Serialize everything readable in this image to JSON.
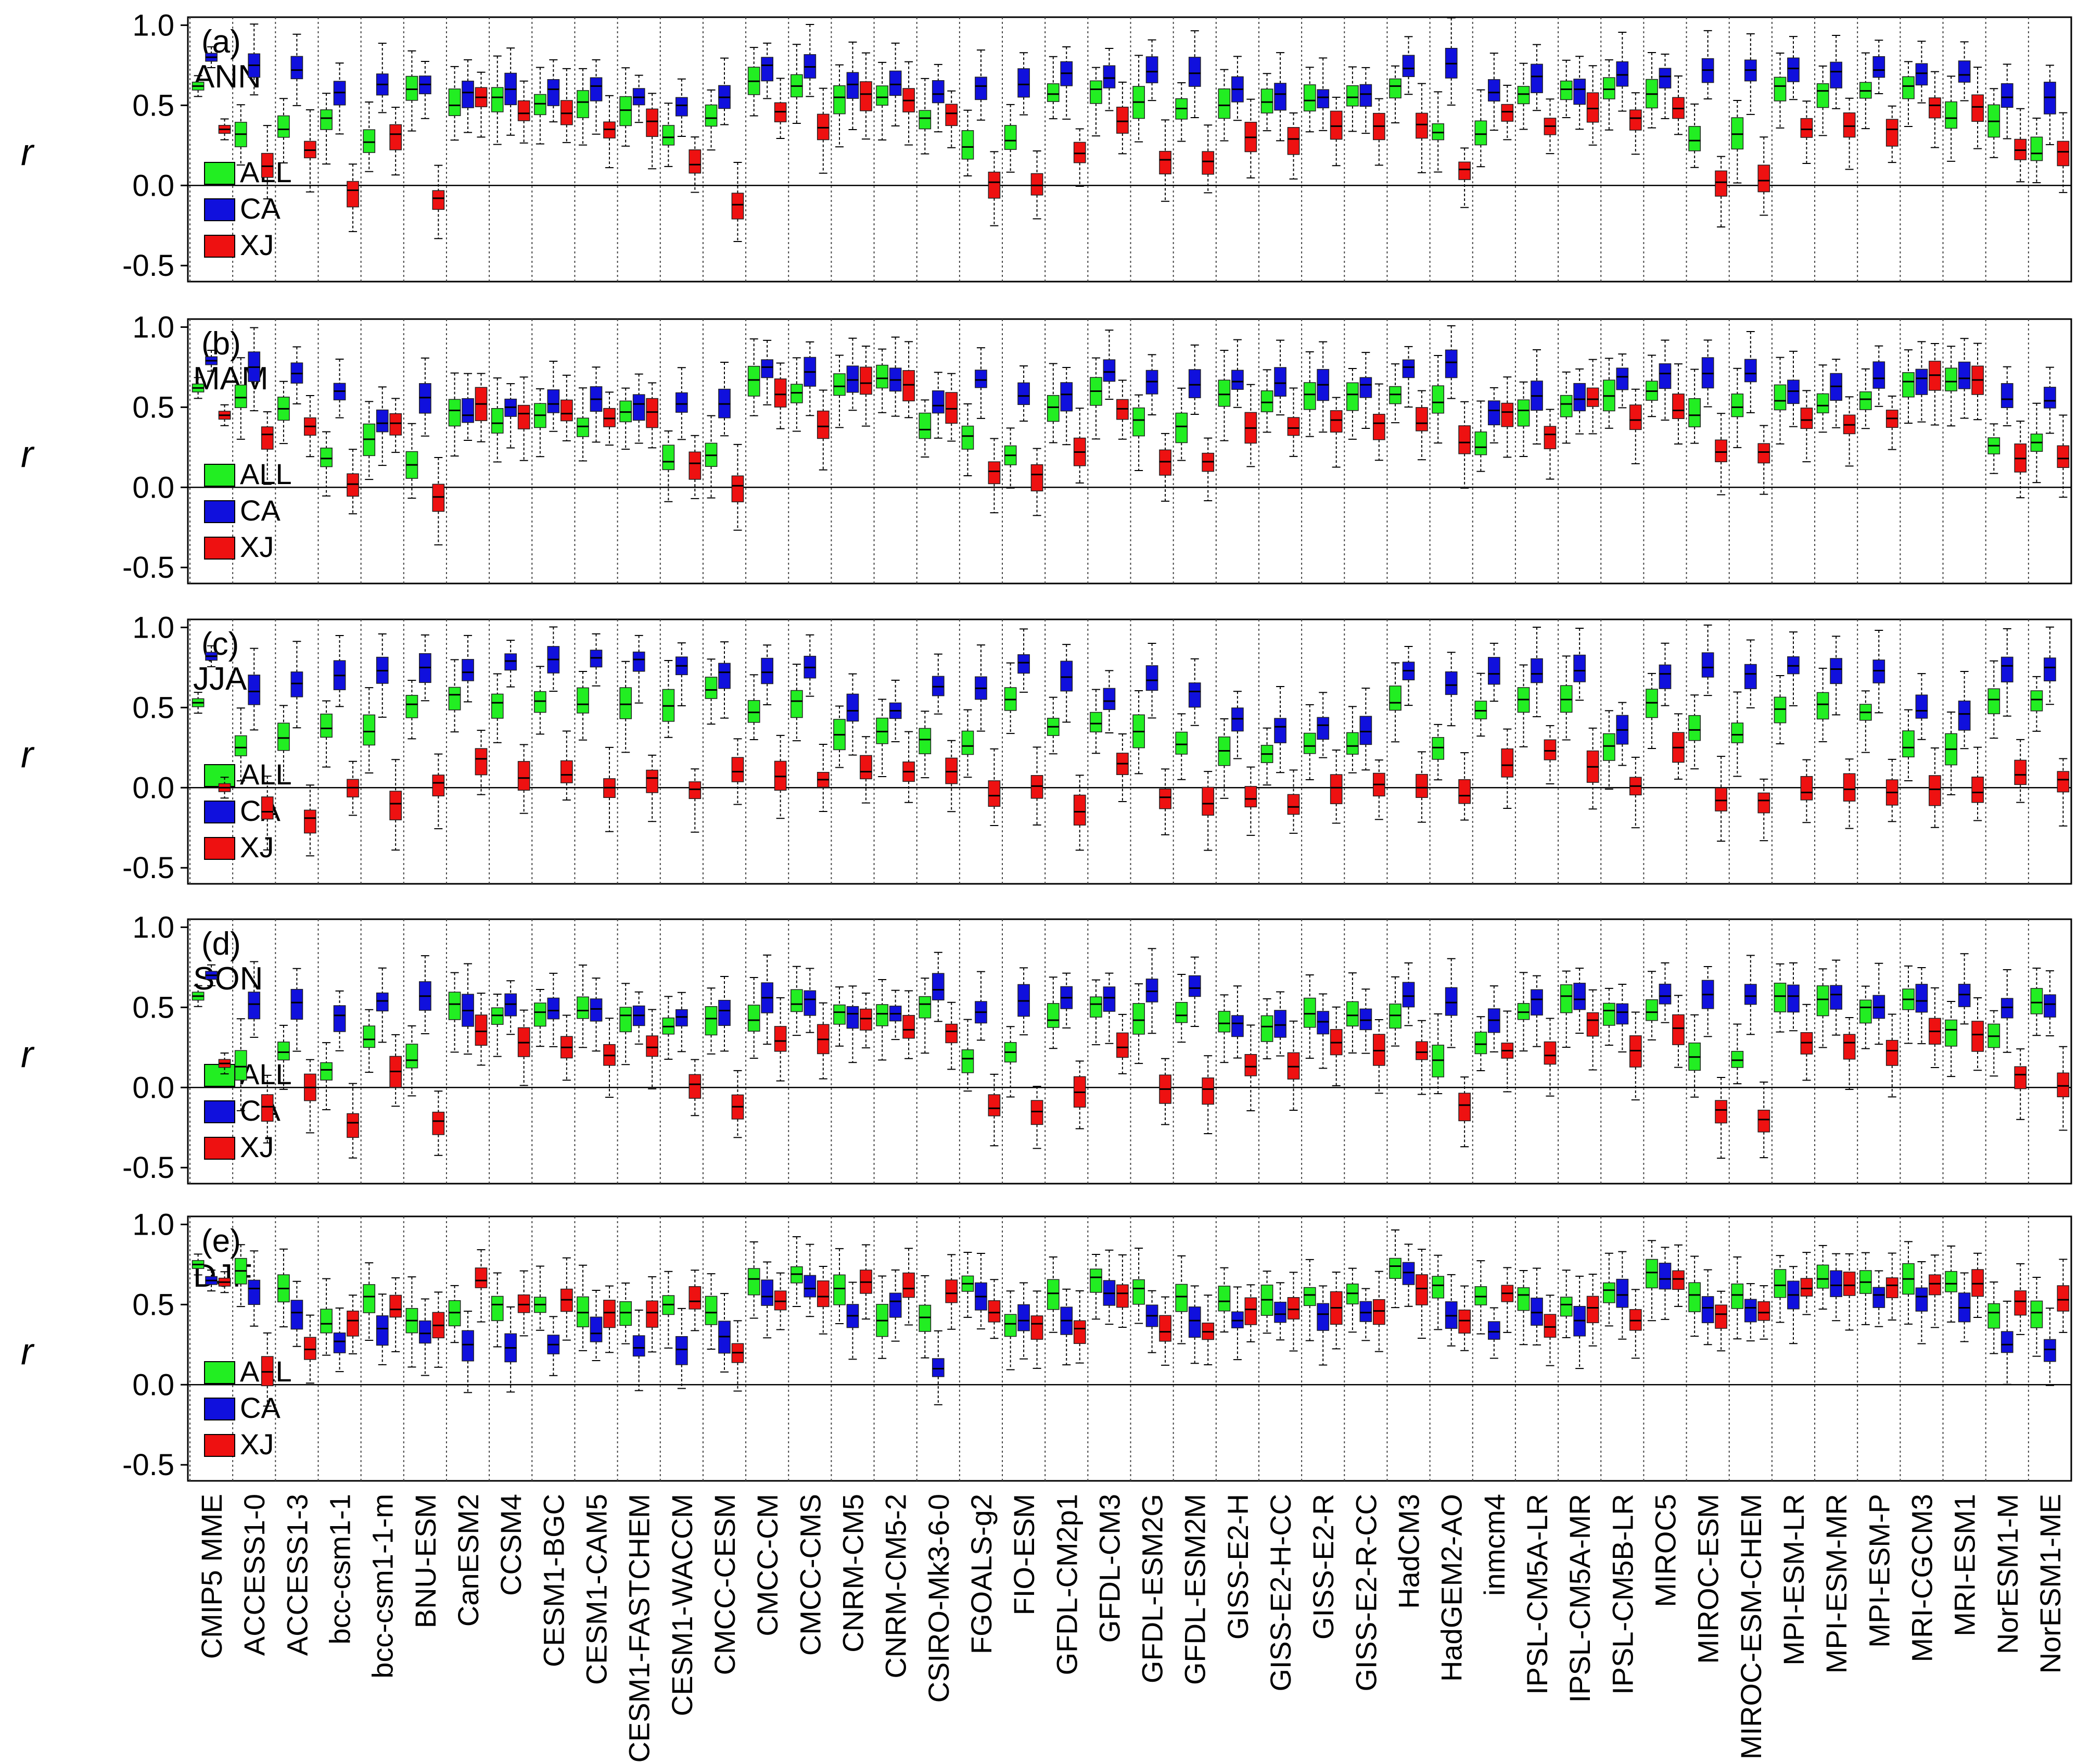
{
  "chart_data": {
    "type": "boxplot",
    "ylabel": "r",
    "ylim": [
      -0.6,
      1.05
    ],
    "yticks": [
      1.0,
      0.5,
      0.0,
      -0.5
    ],
    "ytick_labels": [
      "1.0",
      "0.5",
      "0.0",
      "-0.5"
    ],
    "series_colors": {
      "ALL": "#22ee22",
      "CA": "#1010dd",
      "XJ": "#ee1111"
    },
    "legend": [
      "ALL",
      "CA",
      "XJ"
    ],
    "models": [
      "CMIP5 MME",
      "ACCESS1-0",
      "ACCESS1-3",
      "bcc-csm1-1",
      "bcc-csm1-1-m",
      "BNU-ESM",
      "CanESM2",
      "CCSM4",
      "CESM1-BGC",
      "CESM1-CAM5",
      "CESM1-FASTCHEM",
      "CESM1-WACCM",
      "CMCC-CESM",
      "CMCC-CM",
      "CMCC-CMS",
      "CNRM-CM5",
      "CNRM-CM5-2",
      "CSIRO-Mk3-6-0",
      "FGOALS-g2",
      "FIO-ESM",
      "GFDL-CM2p1",
      "GFDL-CM3",
      "GFDL-ESM2G",
      "GFDL-ESM2M",
      "GISS-E2-H",
      "GISS-E2-H-CC",
      "GISS-E2-R",
      "GISS-E2-R-CC",
      "HadCM3",
      "HadGEM2-AO",
      "inmcm4",
      "IPSL-CM5A-LR",
      "IPSL-CM5A-MR",
      "IPSL-CM5B-LR",
      "MIROC5",
      "MIROC-ESM",
      "MIROC-ESM-CHEM",
      "MPI-ESM-LR",
      "MPI-ESM-MR",
      "MPI-ESM-P",
      "MRI-CGCM3",
      "MRI-ESM1",
      "NorESM1-M",
      "NorESM1-ME"
    ],
    "panels": [
      {
        "label": "(a)",
        "season": "ANN",
        "ALL": [
          0.62,
          0.32,
          0.35,
          0.42,
          0.27,
          0.6,
          0.5,
          0.55,
          0.51,
          0.52,
          0.47,
          0.3,
          0.42,
          0.65,
          0.62,
          0.55,
          0.55,
          0.42,
          0.24,
          0.28,
          0.57,
          0.6,
          0.52,
          0.48,
          0.5,
          0.52,
          0.53,
          0.55,
          0.62,
          0.33,
          0.32,
          0.57,
          0.6,
          0.6,
          0.57,
          0.28,
          0.32,
          0.62,
          0.59,
          0.59,
          0.62,
          0.42,
          0.4,
          0.2
        ],
        "CA": [
          0.8,
          0.75,
          0.72,
          0.58,
          0.63,
          0.63,
          0.58,
          0.6,
          0.6,
          0.62,
          0.55,
          0.5,
          0.55,
          0.75,
          0.74,
          0.63,
          0.63,
          0.57,
          0.62,
          0.63,
          0.7,
          0.67,
          0.71,
          0.7,
          0.6,
          0.57,
          0.55,
          0.57,
          0.73,
          0.76,
          0.58,
          0.68,
          0.6,
          0.69,
          0.68,
          0.72,
          0.72,
          0.73,
          0.71,
          0.72,
          0.7,
          0.69,
          0.55,
          0.55
        ],
        "XJ": [
          0.35,
          0.12,
          0.22,
          -0.03,
          0.32,
          -0.08,
          0.55,
          0.45,
          0.45,
          0.35,
          0.4,
          0.13,
          -0.12,
          0.46,
          0.36,
          0.57,
          0.53,
          0.45,
          0.02,
          0.0,
          0.2,
          0.4,
          0.16,
          0.15,
          0.3,
          0.29,
          0.37,
          0.37,
          0.38,
          0.1,
          0.46,
          0.37,
          0.48,
          0.42,
          0.48,
          0.02,
          0.03,
          0.35,
          0.37,
          0.35,
          0.5,
          0.49,
          0.22,
          0.21
        ]
      },
      {
        "label": "(b)",
        "season": "MAM",
        "ALL": [
          0.62,
          0.56,
          0.49,
          0.18,
          0.3,
          0.14,
          0.48,
          0.4,
          0.45,
          0.38,
          0.47,
          0.16,
          0.2,
          0.67,
          0.59,
          0.63,
          0.68,
          0.36,
          0.32,
          0.2,
          0.5,
          0.6,
          0.42,
          0.38,
          0.58,
          0.53,
          0.58,
          0.58,
          0.58,
          0.53,
          0.25,
          0.48,
          0.52,
          0.57,
          0.6,
          0.45,
          0.5,
          0.54,
          0.51,
          0.55,
          0.66,
          0.66,
          0.26,
          0.28
        ],
        "CA": [
          0.79,
          0.75,
          0.71,
          0.6,
          0.4,
          0.56,
          0.45,
          0.5,
          0.52,
          0.55,
          0.52,
          0.52,
          0.52,
          0.75,
          0.72,
          0.67,
          0.67,
          0.51,
          0.67,
          0.57,
          0.58,
          0.72,
          0.66,
          0.64,
          0.66,
          0.65,
          0.64,
          0.64,
          0.75,
          0.78,
          0.48,
          0.57,
          0.55,
          0.69,
          0.71,
          0.71,
          0.71,
          0.6,
          0.63,
          0.68,
          0.68,
          0.68,
          0.55,
          0.54
        ],
        "XJ": [
          0.45,
          0.33,
          0.38,
          0.02,
          0.4,
          -0.06,
          0.52,
          0.46,
          0.46,
          0.43,
          0.47,
          0.15,
          0.01,
          0.58,
          0.38,
          0.65,
          0.64,
          0.49,
          0.1,
          0.08,
          0.22,
          0.49,
          0.16,
          0.16,
          0.37,
          0.37,
          0.42,
          0.4,
          0.4,
          0.28,
          0.47,
          0.33,
          0.55,
          0.42,
          0.48,
          0.22,
          0.22,
          0.42,
          0.39,
          0.43,
          0.7,
          0.67,
          0.18,
          0.18
        ]
      },
      {
        "label": "(c)",
        "season": "JJA",
        "ALL": [
          0.53,
          0.25,
          0.31,
          0.37,
          0.35,
          0.52,
          0.58,
          0.53,
          0.54,
          0.52,
          0.52,
          0.51,
          0.61,
          0.47,
          0.54,
          0.33,
          0.35,
          0.3,
          0.26,
          0.55,
          0.38,
          0.4,
          0.35,
          0.27,
          0.23,
          0.21,
          0.26,
          0.26,
          0.53,
          0.25,
          0.48,
          0.55,
          0.55,
          0.26,
          0.53,
          0.36,
          0.33,
          0.49,
          0.52,
          0.47,
          0.25,
          0.24,
          0.55,
          0.55
        ],
        "CA": [
          0.82,
          0.6,
          0.65,
          0.7,
          0.73,
          0.75,
          0.72,
          0.79,
          0.8,
          0.81,
          0.8,
          0.76,
          0.72,
          0.72,
          0.75,
          0.48,
          0.48,
          0.63,
          0.62,
          0.78,
          0.69,
          0.54,
          0.67,
          0.6,
          0.43,
          0.38,
          0.39,
          0.35,
          0.73,
          0.64,
          0.71,
          0.71,
          0.73,
          0.36,
          0.71,
          0.75,
          0.71,
          0.76,
          0.74,
          0.73,
          0.48,
          0.46,
          0.76,
          0.75
        ],
        "XJ": [
          0.0,
          -0.15,
          -0.19,
          0.0,
          -0.1,
          0.03,
          0.18,
          0.06,
          0.08,
          0.0,
          0.06,
          -0.01,
          0.1,
          0.07,
          0.05,
          0.1,
          0.1,
          0.1,
          -0.05,
          0.01,
          -0.15,
          0.15,
          -0.06,
          -0.1,
          -0.07,
          -0.12,
          0.0,
          0.02,
          0.0,
          -0.05,
          0.14,
          0.23,
          0.13,
          0.01,
          0.25,
          -0.08,
          -0.08,
          -0.03,
          -0.01,
          -0.03,
          -0.01,
          -0.03,
          0.08,
          0.05
        ]
      },
      {
        "label": "(d)",
        "season": "SON",
        "ALL": [
          0.57,
          0.13,
          0.22,
          0.11,
          0.3,
          0.17,
          0.52,
          0.45,
          0.47,
          0.48,
          0.45,
          0.38,
          0.43,
          0.42,
          0.52,
          0.47,
          0.46,
          0.52,
          0.18,
          0.22,
          0.42,
          0.52,
          0.42,
          0.45,
          0.4,
          0.38,
          0.46,
          0.45,
          0.45,
          0.17,
          0.27,
          0.47,
          0.57,
          0.48,
          0.47,
          0.19,
          0.17,
          0.57,
          0.55,
          0.5,
          0.55,
          0.36,
          0.32,
          0.53
        ],
        "CA": [
          0.7,
          0.52,
          0.53,
          0.45,
          0.54,
          0.57,
          0.48,
          0.52,
          0.48,
          0.49,
          0.45,
          0.44,
          0.48,
          0.56,
          0.55,
          0.46,
          0.46,
          0.61,
          0.47,
          0.54,
          0.56,
          0.56,
          0.6,
          0.62,
          0.4,
          0.39,
          0.41,
          0.42,
          0.57,
          0.53,
          0.42,
          0.55,
          0.55,
          0.47,
          0.57,
          0.58,
          0.57,
          0.57,
          0.58,
          0.5,
          0.54,
          0.58,
          0.5,
          0.52
        ],
        "XJ": [
          0.15,
          -0.12,
          0.0,
          -0.22,
          0.1,
          -0.21,
          0.35,
          0.28,
          0.25,
          0.2,
          0.25,
          0.02,
          -0.12,
          0.29,
          0.3,
          0.43,
          0.36,
          0.35,
          -0.13,
          -0.15,
          -0.03,
          0.25,
          -0.01,
          -0.01,
          0.13,
          0.13,
          0.28,
          0.23,
          0.22,
          -0.11,
          0.23,
          0.2,
          0.42,
          0.23,
          0.37,
          -0.14,
          -0.2,
          0.28,
          0.28,
          0.23,
          0.35,
          0.33,
          0.08,
          0.01
        ]
      },
      {
        "label": "(e)",
        "season": "DJF",
        "ALL": [
          0.75,
          0.71,
          0.6,
          0.38,
          0.55,
          0.4,
          0.45,
          0.5,
          0.5,
          0.45,
          0.45,
          0.5,
          0.45,
          0.66,
          0.69,
          0.6,
          0.4,
          0.42,
          0.63,
          0.38,
          0.57,
          0.67,
          0.6,
          0.55,
          0.52,
          0.53,
          0.56,
          0.57,
          0.74,
          0.62,
          0.55,
          0.56,
          0.5,
          0.59,
          0.7,
          0.56,
          0.56,
          0.62,
          0.66,
          0.64,
          0.66,
          0.63,
          0.45,
          0.45
        ],
        "CA": [
          0.65,
          0.6,
          0.45,
          0.27,
          0.35,
          0.32,
          0.25,
          0.23,
          0.25,
          0.32,
          0.23,
          0.22,
          0.3,
          0.55,
          0.6,
          0.43,
          0.52,
          0.1,
          0.55,
          0.4,
          0.4,
          0.57,
          0.43,
          0.4,
          0.4,
          0.44,
          0.44,
          0.45,
          0.7,
          0.43,
          0.33,
          0.45,
          0.4,
          0.56,
          0.66,
          0.48,
          0.48,
          0.56,
          0.62,
          0.56,
          0.55,
          0.48,
          0.25,
          0.22
        ],
        "XJ": [
          0.64,
          0.08,
          0.22,
          0.4,
          0.47,
          0.37,
          0.65,
          0.5,
          0.53,
          0.45,
          0.45,
          0.52,
          0.2,
          0.52,
          0.55,
          0.64,
          0.6,
          0.57,
          0.45,
          0.38,
          0.35,
          0.57,
          0.33,
          0.33,
          0.47,
          0.47,
          0.48,
          0.46,
          0.6,
          0.4,
          0.57,
          0.36,
          0.48,
          0.4,
          0.66,
          0.44,
          0.45,
          0.6,
          0.62,
          0.62,
          0.63,
          0.63,
          0.52,
          0.53
        ]
      }
    ]
  }
}
